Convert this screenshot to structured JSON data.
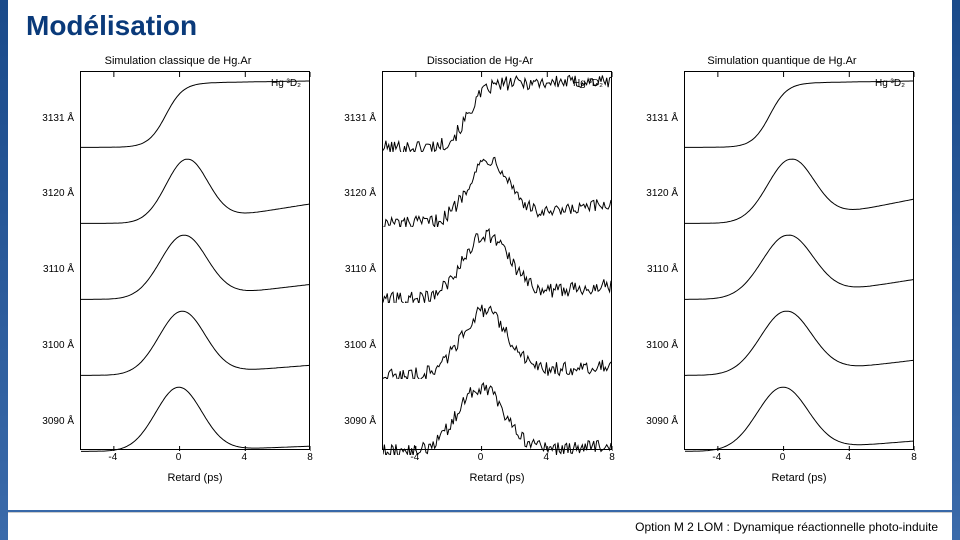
{
  "title": "Modélisation",
  "footer": "Option M 2 LOM : Dynamique réactionnelle photo-induite",
  "shared": {
    "xaxis": {
      "label": "Retard (ps)",
      "ticks": [
        -4,
        0,
        4,
        8
      ],
      "min": -6,
      "max": 8
    },
    "corner_label": "Hg ³D₂",
    "trace_labels": [
      "3131 Å",
      "3120 Å",
      "3110 Å",
      "3100 Å",
      "3090 Å"
    ],
    "n_traces": 5,
    "colors": {
      "line": "#000000",
      "frame": "#000000",
      "background": "#ffffff",
      "title": "#0a3a7a"
    },
    "font_sizes": {
      "slide_title_pt": 28,
      "panel_title_pt": 11,
      "axis_label_pt": 11,
      "tick_pt": 10,
      "trace_label_pt": 10,
      "footer_pt": 12
    }
  },
  "panels": [
    {
      "id": "classical",
      "title": "Simulation classique de Hg.Ar",
      "style": "smooth",
      "noise_amp": 0,
      "traces": [
        {
          "shape": "step",
          "rise_center": -0.8,
          "rise_width": 1.6,
          "post_slope": 0.08
        },
        {
          "shape": "gauss",
          "center": 0.5,
          "width": 1.8,
          "amp": 1.0,
          "post_slope": 0.04
        },
        {
          "shape": "gauss",
          "center": 0.3,
          "width": 2.0,
          "amp": 1.0,
          "post_slope": 0.03
        },
        {
          "shape": "gauss",
          "center": 0.2,
          "width": 2.0,
          "amp": 1.0,
          "post_slope": 0.02
        },
        {
          "shape": "gauss",
          "center": 0.0,
          "width": 2.0,
          "amp": 1.0,
          "post_slope": 0.01
        }
      ]
    },
    {
      "id": "dissociation",
      "title": "Dissociation de Hg-Ar",
      "style": "noisy",
      "noise_amp": 0.22,
      "traces": [
        {
          "shape": "step",
          "rise_center": -0.8,
          "rise_width": 1.6,
          "post_slope": 0.06
        },
        {
          "shape": "gauss",
          "center": 0.5,
          "width": 1.8,
          "amp": 1.0,
          "post_slope": 0.04
        },
        {
          "shape": "gauss",
          "center": 0.3,
          "width": 2.0,
          "amp": 1.0,
          "post_slope": 0.03
        },
        {
          "shape": "gauss",
          "center": 0.2,
          "width": 2.0,
          "amp": 1.0,
          "post_slope": 0.02
        },
        {
          "shape": "gauss",
          "center": 0.0,
          "width": 2.0,
          "amp": 1.0,
          "post_slope": 0.01
        }
      ]
    },
    {
      "id": "quantum",
      "title": "Simulation quantique de Hg.Ar",
      "style": "smooth",
      "noise_amp": 0,
      "traces": [
        {
          "shape": "step",
          "rise_center": -0.8,
          "rise_width": 1.6,
          "post_slope": 0.08
        },
        {
          "shape": "gauss",
          "center": 0.5,
          "width": 2.0,
          "amp": 1.0,
          "post_slope": 0.05
        },
        {
          "shape": "gauss",
          "center": 0.3,
          "width": 2.2,
          "amp": 1.0,
          "post_slope": 0.04
        },
        {
          "shape": "gauss",
          "center": 0.2,
          "width": 2.2,
          "amp": 1.0,
          "post_slope": 0.03
        },
        {
          "shape": "gauss",
          "center": 0.0,
          "width": 2.2,
          "amp": 1.0,
          "post_slope": 0.02
        }
      ]
    }
  ]
}
